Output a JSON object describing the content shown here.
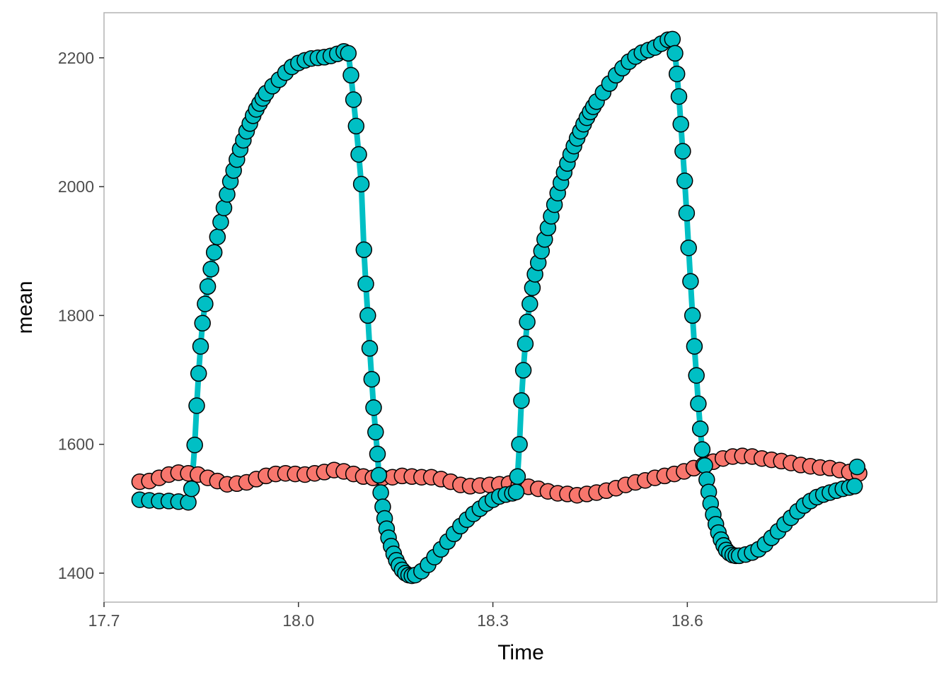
{
  "chart_data": {
    "type": "line",
    "xlabel": "Time",
    "ylabel": "mean",
    "xlim": [
      17.7,
      18.985
    ],
    "ylim": [
      1355,
      2270
    ],
    "x_ticks": [
      17.7,
      18.0,
      18.3,
      18.6
    ],
    "x_tick_labels": [
      "17.7",
      "18.0",
      "18.3",
      "18.6"
    ],
    "y_ticks": [
      1400,
      1600,
      1800,
      2000,
      2200
    ],
    "y_tick_labels": [
      "1400",
      "1600",
      "1800",
      "2000",
      "2200"
    ],
    "grid": false,
    "legend": "none",
    "series": [
      {
        "color": "#F8766D",
        "points": [
          [
            17.755,
            1542
          ],
          [
            17.77,
            1543
          ],
          [
            17.785,
            1548
          ],
          [
            17.8,
            1553
          ],
          [
            17.815,
            1556
          ],
          [
            17.83,
            1555
          ],
          [
            17.845,
            1553
          ],
          [
            17.86,
            1548
          ],
          [
            17.875,
            1543
          ],
          [
            17.89,
            1538
          ],
          [
            17.905,
            1539
          ],
          [
            17.92,
            1541
          ],
          [
            17.935,
            1546
          ],
          [
            17.95,
            1551
          ],
          [
            17.965,
            1554
          ],
          [
            17.98,
            1555
          ],
          [
            17.995,
            1554
          ],
          [
            18.01,
            1553
          ],
          [
            18.025,
            1555
          ],
          [
            18.04,
            1557
          ],
          [
            18.055,
            1560
          ],
          [
            18.07,
            1558
          ],
          [
            18.085,
            1554
          ],
          [
            18.1,
            1550
          ],
          [
            18.115,
            1548
          ],
          [
            18.13,
            1548
          ],
          [
            18.145,
            1549
          ],
          [
            18.16,
            1551
          ],
          [
            18.175,
            1550
          ],
          [
            18.19,
            1549
          ],
          [
            18.205,
            1549
          ],
          [
            18.22,
            1546
          ],
          [
            18.235,
            1542
          ],
          [
            18.25,
            1537
          ],
          [
            18.265,
            1535
          ],
          [
            18.28,
            1536
          ],
          [
            18.295,
            1537
          ],
          [
            18.31,
            1538
          ],
          [
            18.325,
            1539
          ],
          [
            18.34,
            1537
          ],
          [
            18.355,
            1534
          ],
          [
            18.37,
            1531
          ],
          [
            18.385,
            1527
          ],
          [
            18.4,
            1524
          ],
          [
            18.415,
            1523
          ],
          [
            18.43,
            1521
          ],
          [
            18.445,
            1523
          ],
          [
            18.46,
            1525
          ],
          [
            18.475,
            1528
          ],
          [
            18.49,
            1532
          ],
          [
            18.505,
            1537
          ],
          [
            18.52,
            1541
          ],
          [
            18.535,
            1544
          ],
          [
            18.55,
            1548
          ],
          [
            18.565,
            1551
          ],
          [
            18.58,
            1554
          ],
          [
            18.595,
            1558
          ],
          [
            18.61,
            1563
          ],
          [
            18.625,
            1568
          ],
          [
            18.64,
            1573
          ],
          [
            18.655,
            1578
          ],
          [
            18.67,
            1581
          ],
          [
            18.685,
            1582
          ],
          [
            18.7,
            1581
          ],
          [
            18.715,
            1578
          ],
          [
            18.73,
            1576
          ],
          [
            18.745,
            1574
          ],
          [
            18.76,
            1571
          ],
          [
            18.775,
            1568
          ],
          [
            18.79,
            1566
          ],
          [
            18.805,
            1564
          ],
          [
            18.82,
            1563
          ],
          [
            18.835,
            1560
          ],
          [
            18.85,
            1557
          ],
          [
            18.865,
            1555
          ]
        ]
      },
      {
        "color": "#00BFC4",
        "points": [
          [
            17.755,
            1514
          ],
          [
            17.77,
            1513
          ],
          [
            17.785,
            1512
          ],
          [
            17.8,
            1512
          ],
          [
            17.815,
            1511
          ],
          [
            17.83,
            1510
          ],
          [
            17.835,
            1531
          ],
          [
            17.84,
            1599
          ],
          [
            17.843,
            1660
          ],
          [
            17.846,
            1710
          ],
          [
            17.849,
            1752
          ],
          [
            17.852,
            1788
          ],
          [
            17.856,
            1818
          ],
          [
            17.86,
            1845
          ],
          [
            17.865,
            1872
          ],
          [
            17.87,
            1898
          ],
          [
            17.875,
            1922
          ],
          [
            17.88,
            1945
          ],
          [
            17.885,
            1967
          ],
          [
            17.89,
            1988
          ],
          [
            17.895,
            2008
          ],
          [
            17.9,
            2025
          ],
          [
            17.905,
            2042
          ],
          [
            17.91,
            2058
          ],
          [
            17.915,
            2072
          ],
          [
            17.92,
            2086
          ],
          [
            17.925,
            2098
          ],
          [
            17.93,
            2110
          ],
          [
            17.935,
            2120
          ],
          [
            17.94,
            2129
          ],
          [
            17.945,
            2137
          ],
          [
            17.95,
            2145
          ],
          [
            17.96,
            2156
          ],
          [
            17.97,
            2166
          ],
          [
            17.98,
            2177
          ],
          [
            17.99,
            2186
          ],
          [
            18.0,
            2192
          ],
          [
            18.01,
            2196
          ],
          [
            18.02,
            2199
          ],
          [
            18.03,
            2200
          ],
          [
            18.04,
            2201
          ],
          [
            18.05,
            2203
          ],
          [
            18.06,
            2206
          ],
          [
            18.07,
            2210
          ],
          [
            18.077,
            2207
          ],
          [
            18.081,
            2173
          ],
          [
            18.085,
            2135
          ],
          [
            18.089,
            2094
          ],
          [
            18.093,
            2050
          ],
          [
            18.097,
            2004
          ],
          [
            18.101,
            1902
          ],
          [
            18.104,
            1849
          ],
          [
            18.107,
            1800
          ],
          [
            18.11,
            1749
          ],
          [
            18.113,
            1701
          ],
          [
            18.116,
            1657
          ],
          [
            18.119,
            1619
          ],
          [
            18.122,
            1585
          ],
          [
            18.124,
            1552
          ],
          [
            18.127,
            1525
          ],
          [
            18.13,
            1503
          ],
          [
            18.133,
            1485
          ],
          [
            18.136,
            1469
          ],
          [
            18.139,
            1455
          ],
          [
            18.143,
            1442
          ],
          [
            18.147,
            1430
          ],
          [
            18.151,
            1420
          ],
          [
            18.155,
            1412
          ],
          [
            18.16,
            1405
          ],
          [
            18.165,
            1400
          ],
          [
            18.17,
            1397
          ],
          [
            18.175,
            1396
          ],
          [
            18.18,
            1397
          ],
          [
            18.19,
            1403
          ],
          [
            18.2,
            1413
          ],
          [
            18.21,
            1425
          ],
          [
            18.22,
            1437
          ],
          [
            18.23,
            1449
          ],
          [
            18.24,
            1461
          ],
          [
            18.25,
            1473
          ],
          [
            18.26,
            1483
          ],
          [
            18.27,
            1492
          ],
          [
            18.28,
            1500
          ],
          [
            18.29,
            1508
          ],
          [
            18.3,
            1514
          ],
          [
            18.31,
            1519
          ],
          [
            18.32,
            1522
          ],
          [
            18.33,
            1524
          ],
          [
            18.336,
            1526
          ],
          [
            18.338,
            1550
          ],
          [
            18.341,
            1600
          ],
          [
            18.344,
            1668
          ],
          [
            18.347,
            1715
          ],
          [
            18.35,
            1756
          ],
          [
            18.353,
            1790
          ],
          [
            18.357,
            1818
          ],
          [
            18.361,
            1843
          ],
          [
            18.365,
            1864
          ],
          [
            18.37,
            1882
          ],
          [
            18.375,
            1900
          ],
          [
            18.38,
            1918
          ],
          [
            18.385,
            1936
          ],
          [
            18.39,
            1954
          ],
          [
            18.395,
            1972
          ],
          [
            18.4,
            1990
          ],
          [
            18.405,
            2006
          ],
          [
            18.41,
            2022
          ],
          [
            18.415,
            2036
          ],
          [
            18.42,
            2050
          ],
          [
            18.425,
            2063
          ],
          [
            18.43,
            2075
          ],
          [
            18.435,
            2086
          ],
          [
            18.44,
            2097
          ],
          [
            18.445,
            2107
          ],
          [
            18.45,
            2116
          ],
          [
            18.455,
            2124
          ],
          [
            18.46,
            2132
          ],
          [
            18.47,
            2146
          ],
          [
            18.48,
            2160
          ],
          [
            18.49,
            2173
          ],
          [
            18.5,
            2184
          ],
          [
            18.51,
            2194
          ],
          [
            18.52,
            2202
          ],
          [
            18.53,
            2208
          ],
          [
            18.54,
            2212
          ],
          [
            18.55,
            2216
          ],
          [
            18.56,
            2222
          ],
          [
            18.57,
            2228
          ],
          [
            18.577,
            2229
          ],
          [
            18.581,
            2207
          ],
          [
            18.584,
            2175
          ],
          [
            18.587,
            2140
          ],
          [
            18.59,
            2097
          ],
          [
            18.593,
            2055
          ],
          [
            18.596,
            2009
          ],
          [
            18.599,
            1959
          ],
          [
            18.602,
            1905
          ],
          [
            18.605,
            1853
          ],
          [
            18.608,
            1800
          ],
          [
            18.611,
            1752
          ],
          [
            18.614,
            1707
          ],
          [
            18.617,
            1663
          ],
          [
            18.62,
            1624
          ],
          [
            18.623,
            1592
          ],
          [
            18.627,
            1567
          ],
          [
            18.63,
            1545
          ],
          [
            18.633,
            1526
          ],
          [
            18.636,
            1508
          ],
          [
            18.64,
            1491
          ],
          [
            18.644,
            1476
          ],
          [
            18.648,
            1463
          ],
          [
            18.652,
            1452
          ],
          [
            18.656,
            1443
          ],
          [
            18.66,
            1436
          ],
          [
            18.665,
            1431
          ],
          [
            18.67,
            1428
          ],
          [
            18.675,
            1427
          ],
          [
            18.68,
            1427
          ],
          [
            18.69,
            1429
          ],
          [
            18.7,
            1432
          ],
          [
            18.71,
            1437
          ],
          [
            18.72,
            1445
          ],
          [
            18.73,
            1455
          ],
          [
            18.74,
            1465
          ],
          [
            18.75,
            1476
          ],
          [
            18.76,
            1486
          ],
          [
            18.77,
            1496
          ],
          [
            18.78,
            1505
          ],
          [
            18.79,
            1512
          ],
          [
            18.8,
            1518
          ],
          [
            18.81,
            1522
          ],
          [
            18.82,
            1525
          ],
          [
            18.83,
            1528
          ],
          [
            18.84,
            1531
          ],
          [
            18.85,
            1533
          ],
          [
            18.858,
            1535
          ],
          [
            18.862,
            1565
          ]
        ]
      }
    ]
  }
}
